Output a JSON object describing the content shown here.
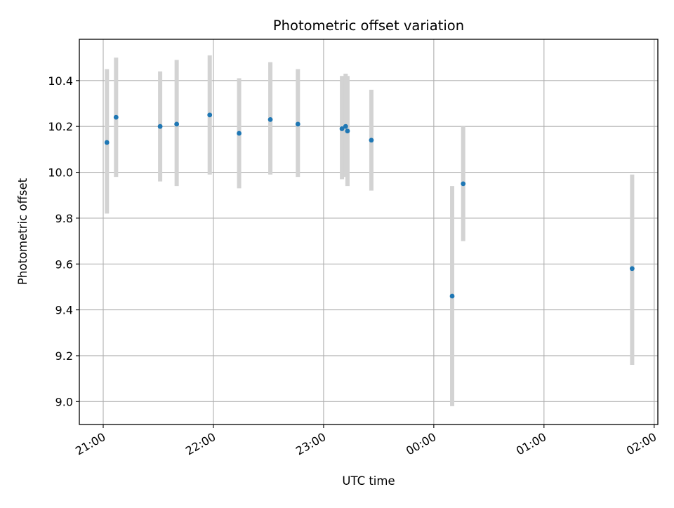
{
  "chart_data": {
    "type": "scatter",
    "title": "Photometric offset variation",
    "xlabel": "UTC time",
    "ylabel": "Photometric offset",
    "x_axis_kind": "time",
    "x_tick_labels": [
      "21:00",
      "22:00",
      "23:00",
      "00:00",
      "01:00",
      "02:00"
    ],
    "x_tick_values": [
      "21:00",
      "22:00",
      "23:00",
      "00:00",
      "01:00",
      "02:00"
    ],
    "xlim": [
      "20:47",
      "02:02"
    ],
    "y_tick_labels": [
      "9.0",
      "9.2",
      "9.4",
      "9.6",
      "9.8",
      "10.0",
      "10.2",
      "10.4"
    ],
    "y_tick_values": [
      9.0,
      9.2,
      9.4,
      9.6,
      9.8,
      10.0,
      10.2,
      10.4
    ],
    "ylim": [
      8.9,
      10.58
    ],
    "grid": true,
    "point_color": "#1f77b4",
    "errorbar_color": "#d3d3d3",
    "points": [
      {
        "x": "21:02",
        "y": 10.13,
        "y_low": 9.82,
        "y_high": 10.45
      },
      {
        "x": "21:07",
        "y": 10.24,
        "y_low": 9.98,
        "y_high": 10.5
      },
      {
        "x": "21:31",
        "y": 10.2,
        "y_low": 9.96,
        "y_high": 10.44
      },
      {
        "x": "21:40",
        "y": 10.21,
        "y_low": 9.94,
        "y_high": 10.49
      },
      {
        "x": "21:58",
        "y": 10.25,
        "y_low": 9.99,
        "y_high": 10.51
      },
      {
        "x": "22:14",
        "y": 10.17,
        "y_low": 9.93,
        "y_high": 10.41
      },
      {
        "x": "22:31",
        "y": 10.23,
        "y_low": 9.99,
        "y_high": 10.48
      },
      {
        "x": "22:46",
        "y": 10.21,
        "y_low": 9.98,
        "y_high": 10.45
      },
      {
        "x": "23:10",
        "y": 10.19,
        "y_low": 9.97,
        "y_high": 10.42
      },
      {
        "x": "23:12",
        "y": 10.2,
        "y_low": 9.98,
        "y_high": 10.43
      },
      {
        "x": "23:13",
        "y": 10.18,
        "y_low": 9.94,
        "y_high": 10.42
      },
      {
        "x": "23:26",
        "y": 10.14,
        "y_low": 9.92,
        "y_high": 10.36
      },
      {
        "x": "00:10",
        "y": 9.46,
        "y_low": 8.98,
        "y_high": 9.94
      },
      {
        "x": "00:16",
        "y": 9.95,
        "y_low": 9.7,
        "y_high": 10.2
      },
      {
        "x": "01:48",
        "y": 9.58,
        "y_low": 9.16,
        "y_high": 9.99
      }
    ]
  }
}
